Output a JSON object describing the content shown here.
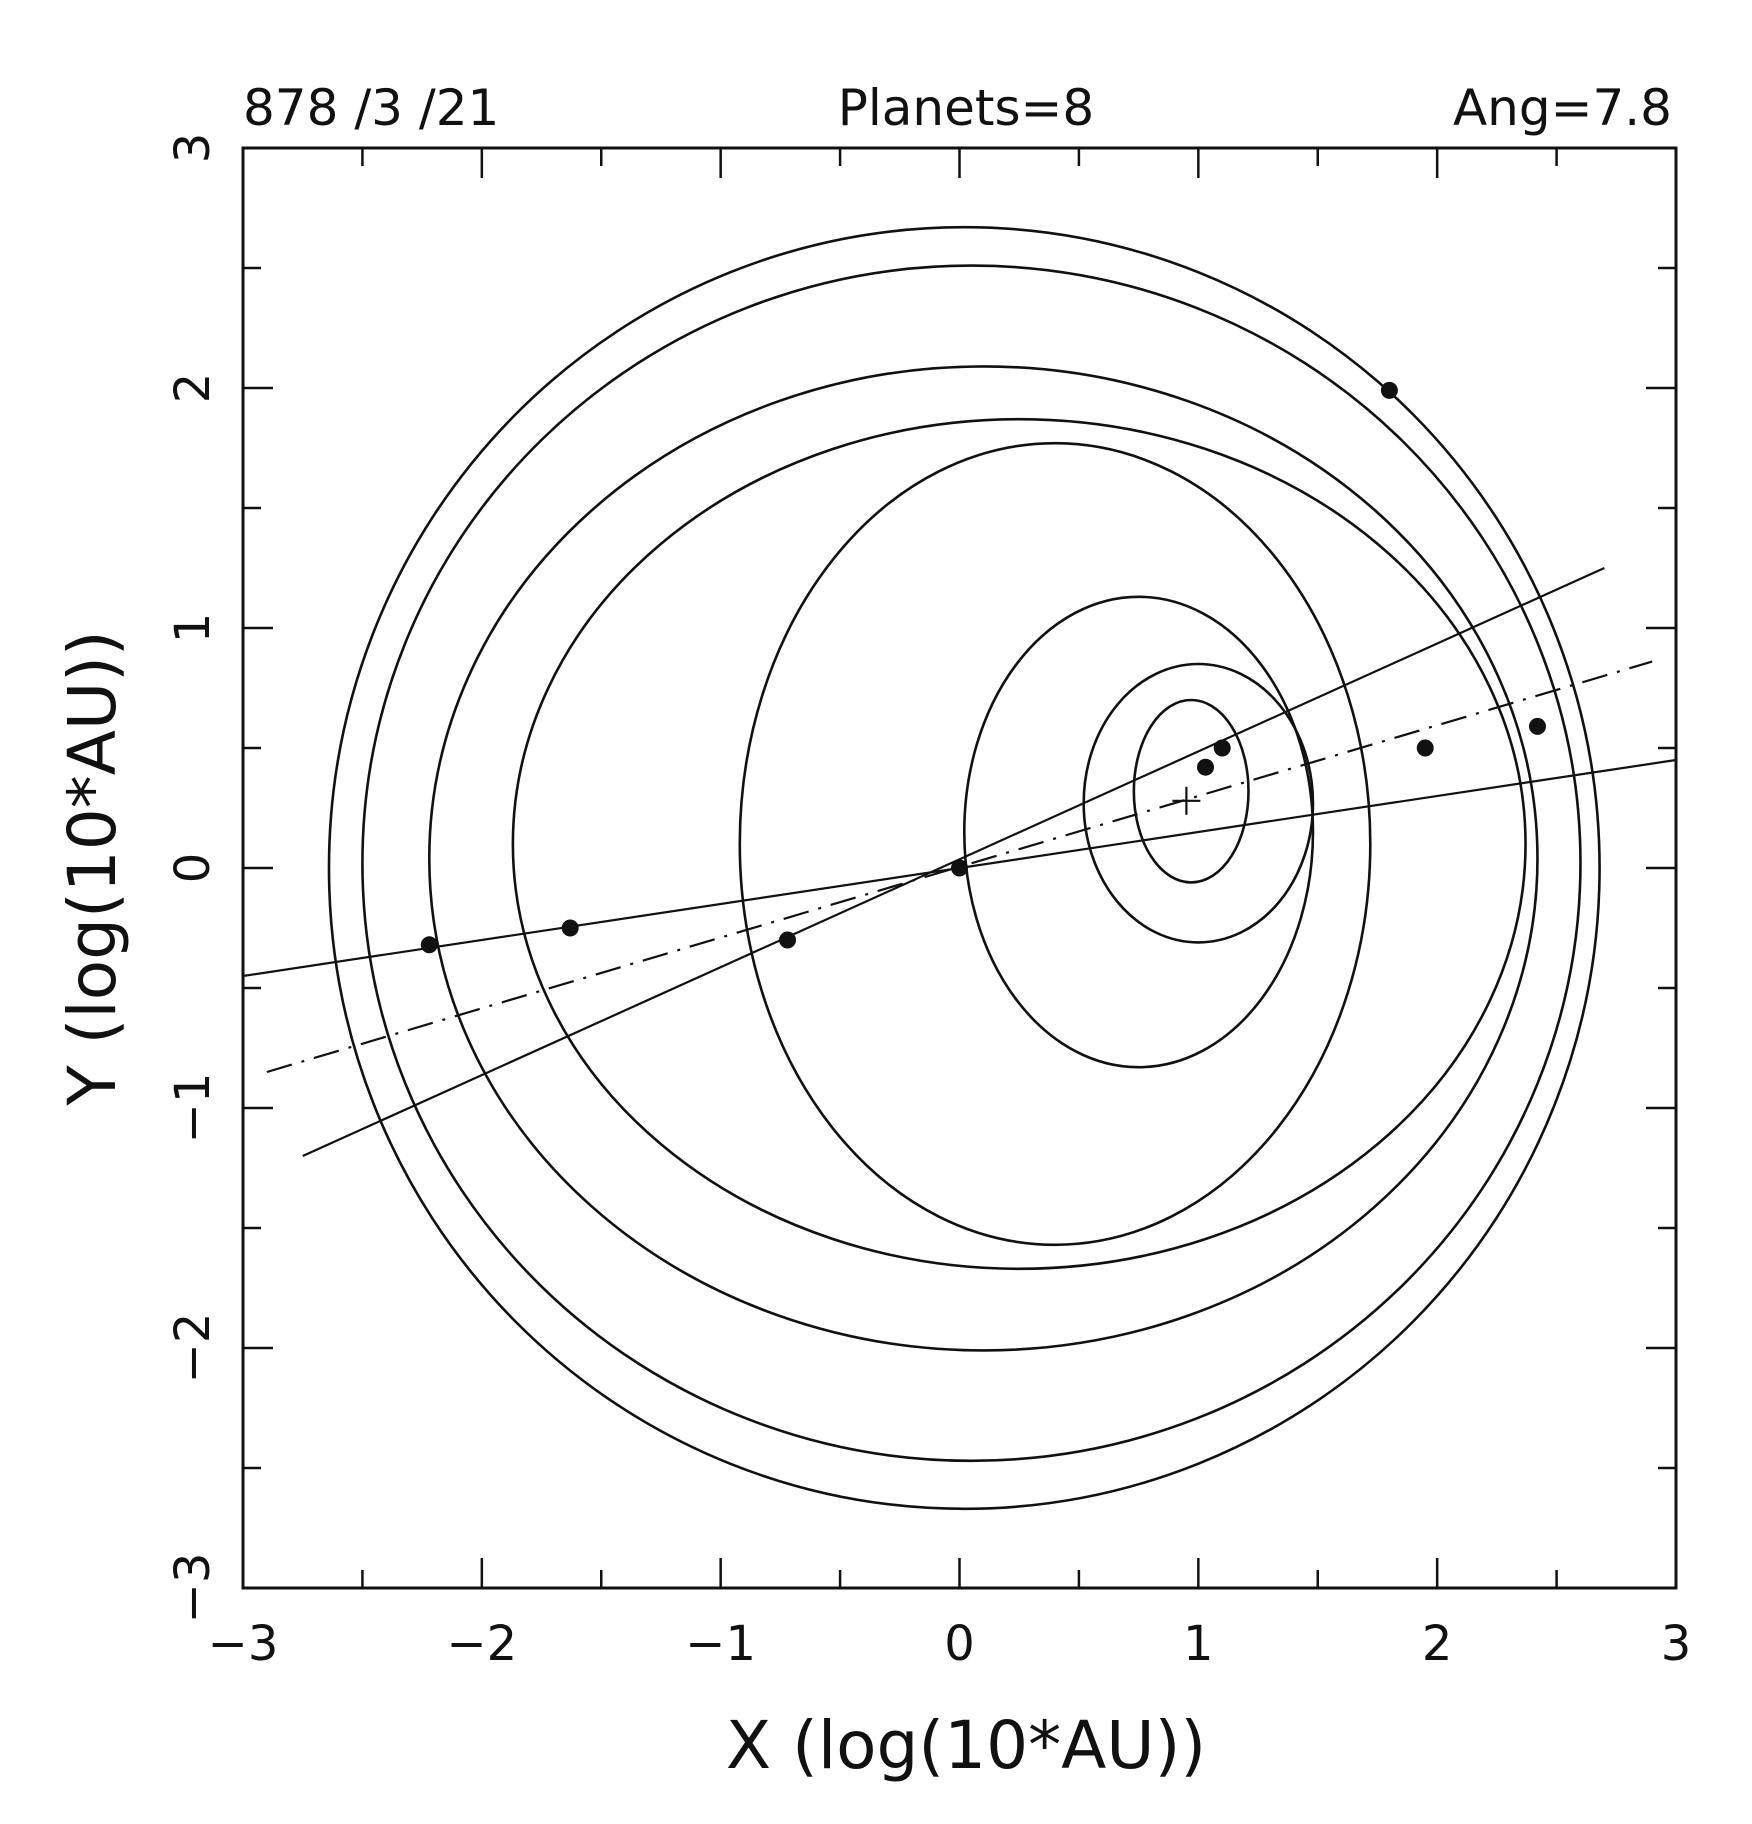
{
  "header": {
    "date": "878  /3 /21",
    "planets": "Planets=8",
    "angle": "Ang=7.8"
  },
  "chart_data": {
    "type": "line",
    "title": "",
    "xlabel": "X (log(10*AU))",
    "ylabel": "Y (log(10*AU))",
    "xlim": [
      -3,
      3
    ],
    "ylim": [
      -3,
      3
    ],
    "x_ticks": [
      "−3",
      "−2",
      "−1",
      "0",
      "1",
      "2",
      "3"
    ],
    "y_ticks": [
      "−3",
      "−2",
      "−1",
      "0",
      "1",
      "2",
      "3"
    ],
    "grid": false,
    "legend": "none",
    "orbits": [
      {
        "cx": 0.97,
        "cy": 0.32,
        "rx": 0.24,
        "ry": 0.38
      },
      {
        "cx": 1.0,
        "cy": 0.27,
        "rx": 0.48,
        "ry": 0.58
      },
      {
        "cx": 0.75,
        "cy": 0.15,
        "rx": 0.73,
        "ry": 0.98
      },
      {
        "cx": 0.4,
        "cy": 0.1,
        "rx": 1.32,
        "ry": 1.67
      },
      {
        "cx": 0.25,
        "cy": 0.1,
        "rx": 2.12,
        "ry": 1.77
      },
      {
        "cx": 0.1,
        "cy": 0.04,
        "rx": 2.32,
        "ry": 2.05
      },
      {
        "cx": 0.05,
        "cy": 0.02,
        "rx": 2.55,
        "ry": 2.49
      },
      {
        "cx": 0.02,
        "cy": 0.0,
        "rx": 2.66,
        "ry": 2.67
      }
    ],
    "planets": [
      {
        "x": 0.0,
        "y": 0.0
      },
      {
        "x": -0.72,
        "y": -0.3
      },
      {
        "x": -1.63,
        "y": -0.25
      },
      {
        "x": -2.22,
        "y": -0.32
      },
      {
        "x": 1.03,
        "y": 0.42
      },
      {
        "x": 1.1,
        "y": 0.5
      },
      {
        "x": 1.95,
        "y": 0.5
      },
      {
        "x": 2.42,
        "y": 0.59
      },
      {
        "x": 1.8,
        "y": 1.99
      }
    ],
    "lines": [
      {
        "style": "solid",
        "x1": -3.0,
        "y1": -0.45,
        "x2": 3.0,
        "y2": 0.45
      },
      {
        "style": "solid",
        "x1": -2.75,
        "y1": -1.2,
        "x2": 2.7,
        "y2": 1.25
      },
      {
        "style": "dash-dot",
        "x1": -2.9,
        "y1": -0.85,
        "x2": 2.9,
        "y2": 0.86
      }
    ],
    "center_marker": {
      "x": 0.95,
      "y": 0.28
    }
  }
}
